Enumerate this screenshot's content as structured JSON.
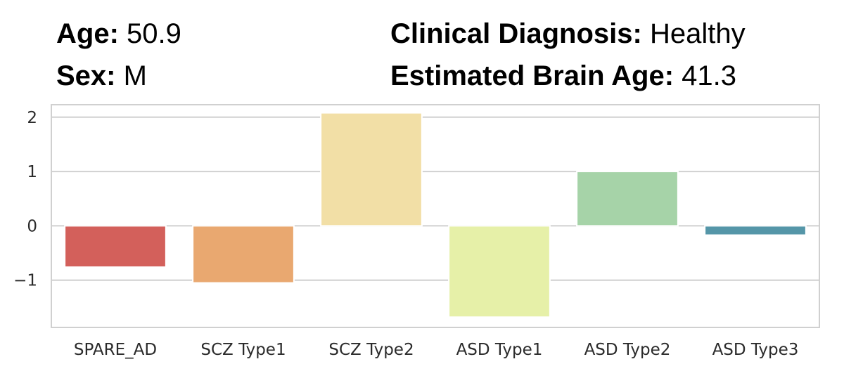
{
  "header": {
    "age_label": "Age:",
    "age_value": "50.9",
    "sex_label": "Sex:",
    "sex_value": "M",
    "diagnosis_label": "Clinical Diagnosis:",
    "diagnosis_value": "Healthy",
    "brain_age_label": "Estimated Brain Age:",
    "brain_age_value": "41.3"
  },
  "chart_data": {
    "type": "bar",
    "categories": [
      "SPARE_AD",
      "SCZ Type1",
      "SCZ Type2",
      "ASD Type1",
      "ASD Type2",
      "ASD Type3"
    ],
    "values": [
      -0.76,
      -1.05,
      2.08,
      -1.68,
      1.0,
      -0.17
    ],
    "colors": [
      "#d3605b",
      "#e9a870",
      "#f2dfa6",
      "#e6f0a8",
      "#a6d3a8",
      "#5596a8"
    ],
    "yticks": [
      -1,
      0,
      1,
      2
    ],
    "ytick_labels": [
      "−1",
      "0",
      "1",
      "2"
    ],
    "ylim": [
      -1.87,
      2.23
    ],
    "grid": true,
    "xlabel": "",
    "ylabel": "",
    "title": ""
  }
}
